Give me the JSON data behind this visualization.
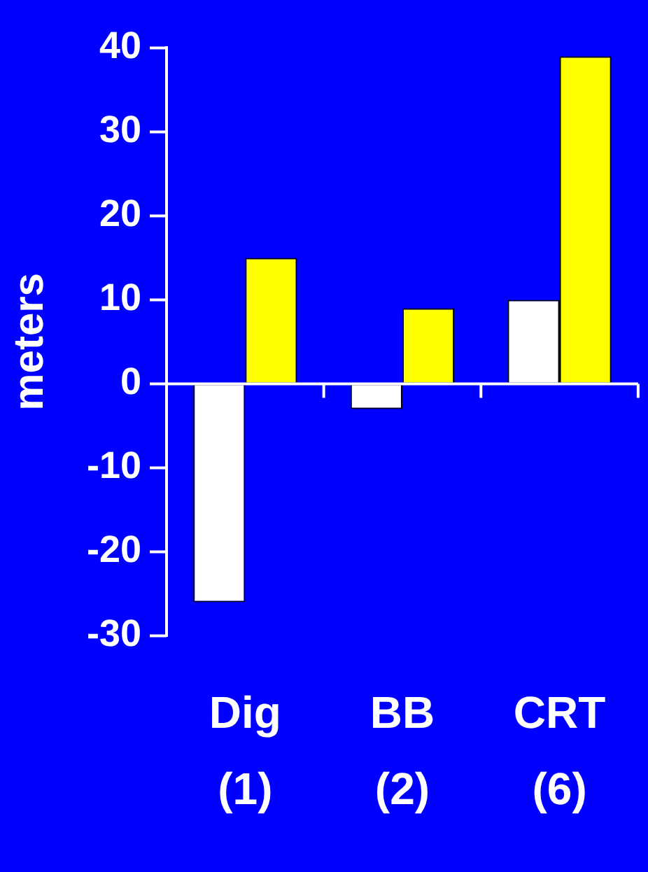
{
  "chart_data": {
    "type": "bar",
    "ylabel": "meters",
    "categories": [
      "Dig (1)",
      "BB (2)",
      "CRT (6)"
    ],
    "series": [
      {
        "color": "#ffffff",
        "values": [
          -26,
          -3,
          10
        ]
      },
      {
        "color": "#ffff00",
        "values": [
          15,
          9,
          39
        ]
      }
    ],
    "ylim": [
      -30,
      40
    ],
    "yticks": [
      -30,
      -20,
      -10,
      0,
      10,
      20,
      30,
      40
    ],
    "legend": false
  }
}
